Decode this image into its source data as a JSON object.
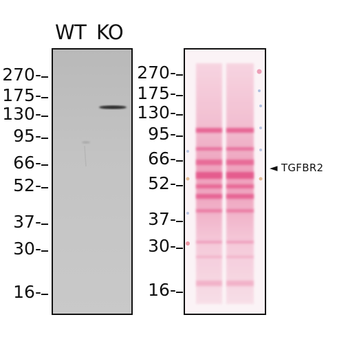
{
  "lanes": {
    "wt": "WT",
    "ko": "KO"
  },
  "left_markers": [
    "270-",
    "175-",
    "130-",
    "95-",
    "66-",
    "52-",
    "37-",
    "30-",
    "16-"
  ],
  "right_markers": [
    "270-",
    "175-",
    "130-",
    "95-",
    "66-",
    "52-",
    "37-",
    "30-",
    "16-"
  ],
  "annotation": {
    "arrow": "◄",
    "label": "TGFBR2"
  },
  "colors": {
    "stain": "#e2437d",
    "membrane_left": "#c3c3c3",
    "band": "#2a2a2a"
  }
}
